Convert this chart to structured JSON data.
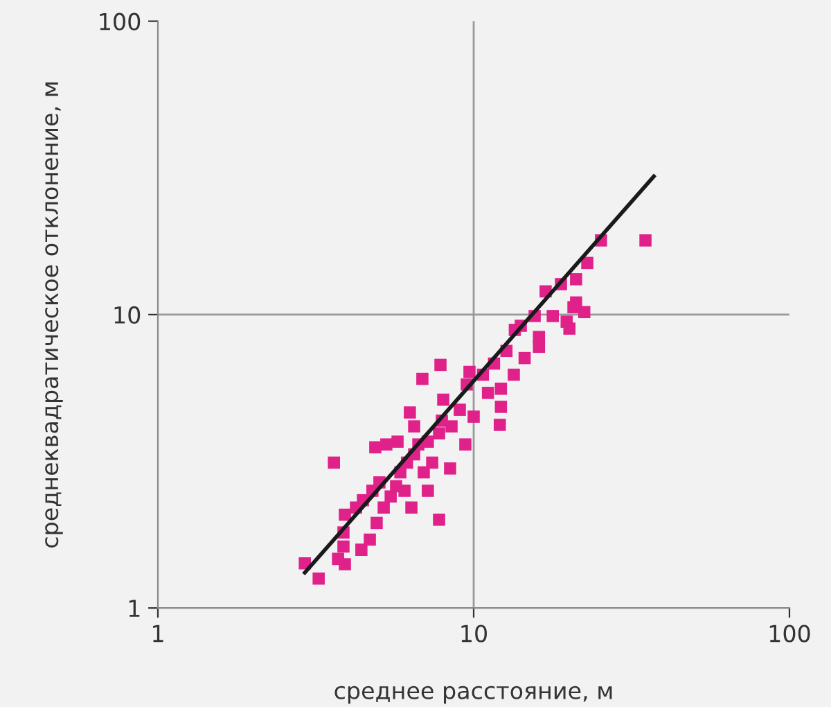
{
  "chart_data": {
    "type": "scatter",
    "xlabel": "среднее расстояние, м",
    "ylabel": "среднеквадратическое отклонение, м",
    "log": "xy",
    "xlim": [
      1,
      100
    ],
    "ylim": [
      1,
      100
    ],
    "xticks": [
      1,
      10,
      100
    ],
    "yticks": [
      1,
      10,
      100
    ],
    "grid": true,
    "marker": "square",
    "series": [
      {
        "color": "#e0218a",
        "x": [
          2.92,
          3.23,
          3.72,
          3.91,
          3.87,
          3.87,
          4.41,
          4.69,
          4.93,
          3.91,
          4.24,
          4.46,
          4.78,
          5.03,
          5.19,
          5.46,
          5.68,
          5.86,
          6.04,
          6.35,
          6.15,
          3.61,
          4.88,
          5.29,
          5.74,
          6.48,
          6.95,
          7.16,
          7.77,
          7.39,
          8.42,
          6.68,
          7.16,
          7.77,
          7.93,
          8.51,
          9.41,
          6.28,
          6.48,
          8.01,
          6.88,
          7.85,
          9.7,
          9.51,
          9.04,
          10.0,
          12.1,
          12.2,
          11.6,
          12.7,
          13.5,
          14.5,
          16.1,
          15.6,
          17.8,
          19.7,
          20.1,
          16.9,
          18.9,
          21.1,
          22.9,
          21.1,
          22.4,
          25.3,
          35.0,
          14.1,
          13.4,
          10.7,
          11.1,
          12.2,
          16.1,
          20.7
        ],
        "values": [
          1.42,
          1.26,
          1.47,
          1.41,
          1.62,
          1.81,
          1.58,
          1.71,
          1.95,
          2.08,
          2.2,
          2.33,
          2.51,
          2.68,
          2.2,
          2.4,
          2.6,
          2.9,
          2.51,
          2.2,
          3.13,
          3.13,
          3.53,
          3.61,
          3.69,
          3.34,
          2.9,
          2.51,
          2.0,
          3.13,
          2.99,
          3.61,
          3.69,
          3.94,
          4.35,
          4.16,
          3.61,
          4.64,
          4.16,
          5.13,
          6.04,
          6.74,
          6.38,
          5.78,
          4.74,
          4.49,
          4.21,
          5.59,
          6.81,
          7.52,
          8.87,
          7.11,
          7.77,
          9.89,
          9.89,
          9.46,
          8.96,
          12.0,
          12.7,
          13.2,
          15.0,
          11.0,
          10.2,
          17.9,
          17.9,
          9.16,
          6.24,
          6.24,
          5.41,
          4.85,
          8.39,
          10.6
        ]
      },
      {
        "type": "line",
        "color": "#1a1a1a",
        "marker": "none",
        "x": [
          2.92,
          37.2
        ],
        "values": [
          1.32,
          29.6
        ]
      }
    ]
  }
}
